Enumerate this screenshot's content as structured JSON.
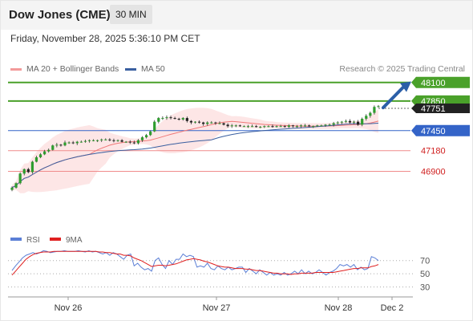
{
  "header": {
    "title": "Dow Jones (CME)",
    "interval": "30 MIN"
  },
  "datetime": "Friday, November 28, 2025 5:36:10 PM CET",
  "legend": {
    "ma20_label": "MA 20 + Bollinger Bands",
    "ma50_label": "MA 50",
    "credit": "Research © 2025 Trading Central"
  },
  "colors": {
    "resistance": "#4aa12a",
    "pivot": "#3464c8",
    "support": "#f08c8c",
    "candle_up": "#2e9d2e",
    "candle_down": "#222222",
    "ma20": "#f07878",
    "ma50": "#3a5fa0",
    "band": "#fbd5d5",
    "current_price_tag": "#222222",
    "arrow": "#2b5fa8",
    "rsi": "#5b7fd6",
    "rsi_ma": "#e02020"
  },
  "chart_data": {
    "type": "candlestick",
    "x_ticks": [
      "Nov 26",
      "Nov 27",
      "Nov 28",
      "Dec 2"
    ],
    "price_range": [
      46700,
      48260
    ],
    "current_price": 47751,
    "levels": [
      {
        "value": 48100,
        "label": "48100",
        "kind": "resistance"
      },
      {
        "value": 47850,
        "label": "47850",
        "kind": "resistance"
      },
      {
        "value": 47450,
        "label": "47450",
        "kind": "pivot"
      },
      {
        "value": 47180,
        "label": "47180",
        "kind": "support"
      },
      {
        "value": 46900,
        "label": "46900",
        "kind": "support"
      }
    ],
    "forecast_arrow": {
      "from": 47760,
      "to": 48080
    },
    "closes": [
      46680,
      46740,
      46870,
      46930,
      46890,
      47030,
      47090,
      47130,
      47170,
      47190,
      47250,
      47260,
      47250,
      47290,
      47290,
      47280,
      47300,
      47300,
      47310,
      47320,
      47320,
      47320,
      47330,
      47330,
      47320,
      47310,
      47320,
      47300,
      47300,
      47290,
      47280,
      47320,
      47360,
      47390,
      47440,
      47570,
      47620,
      47620,
      47630,
      47620,
      47610,
      47600,
      47620,
      47580,
      47560,
      47570,
      47560,
      47540,
      47560,
      47560,
      47550,
      47550,
      47530,
      47510,
      47520,
      47520,
      47510,
      47510,
      47510,
      47510,
      47500,
      47500,
      47510,
      47510,
      47500,
      47510,
      47510,
      47500,
      47520,
      47510,
      47510,
      47520,
      47520,
      47510,
      47510,
      47520,
      47520,
      47530,
      47530,
      47550,
      47560,
      47570,
      47580,
      47560,
      47570,
      47530,
      47610,
      47650,
      47690,
      47770,
      47780
    ],
    "rsi": {
      "labels": [
        "RSI",
        "9MA"
      ],
      "levels": [
        70,
        50,
        30
      ],
      "range": [
        15,
        100
      ],
      "values": [
        55,
        62,
        68,
        74,
        78,
        80,
        82,
        80,
        82,
        85,
        84,
        82,
        83,
        84,
        84,
        85,
        84,
        84,
        84,
        85,
        84,
        83,
        85,
        83,
        84,
        82,
        80,
        82,
        78,
        82,
        80,
        76,
        72,
        78,
        80,
        62,
        66,
        60,
        56,
        58,
        54,
        70,
        74,
        64,
        58,
        70,
        64,
        72,
        72,
        80,
        76,
        78,
        76,
        60,
        62,
        60,
        66,
        58,
        56,
        62,
        58,
        56,
        60,
        56,
        58,
        60,
        60,
        52,
        58,
        54,
        50,
        56,
        52,
        48,
        52,
        48,
        50,
        48,
        52,
        48,
        50,
        54,
        50,
        56,
        50,
        54,
        50,
        52,
        56,
        52,
        48,
        52,
        54,
        58,
        64,
        62,
        64,
        60,
        64,
        56,
        60,
        56,
        58,
        76,
        74,
        70
      ],
      "ma_values": [
        48,
        54,
        60,
        66,
        72,
        76,
        79,
        81,
        82,
        83,
        83,
        83,
        84,
        84,
        84,
        84,
        84,
        84,
        84,
        84,
        84,
        84,
        84,
        84,
        84,
        83,
        83,
        82,
        82,
        81,
        80,
        80,
        78,
        78,
        77,
        74,
        72,
        70,
        67,
        64,
        61,
        62,
        63,
        63,
        62,
        63,
        64,
        65,
        67,
        69,
        71,
        72,
        73,
        72,
        71,
        69,
        68,
        66,
        64,
        62,
        61,
        60,
        60,
        59,
        58,
        58,
        58,
        57,
        57,
        56,
        55,
        55,
        54,
        53,
        52,
        51,
        51,
        50,
        50,
        50,
        49,
        50,
        50,
        51,
        51,
        51,
        51,
        52,
        52,
        52,
        52,
        52,
        52,
        53,
        54,
        55,
        56,
        57,
        58,
        58,
        59,
        59,
        59,
        61,
        62,
        64
      ],
      "level_labels": [
        "70",
        "50",
        "30"
      ]
    }
  }
}
